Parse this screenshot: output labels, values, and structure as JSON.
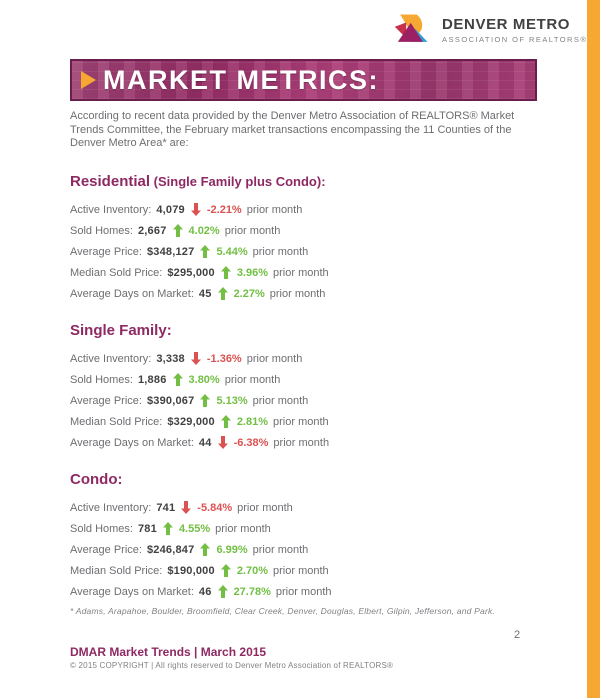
{
  "header": {
    "logo": {
      "title": "DENVER METRO",
      "subtitle": "ASSOCIATION OF REALTORS®"
    },
    "banner": {
      "title": "MARKET METRICS:"
    }
  },
  "intro": "According to recent data provided by the Denver Metro Association of REALTORS® Market Trends Committee, the February market transactions encompassing the 11 Counties of the Denver Metro Area* are:",
  "sections": [
    {
      "title": "Residential",
      "subtitle": " (Single Family plus Condo):",
      "metrics": [
        {
          "label": "Active Inventory:",
          "value": "4,079",
          "direction": "down",
          "pct": "-2.21%",
          "suffix": "prior month"
        },
        {
          "label": "Sold Homes:",
          "value": "2,667",
          "direction": "up",
          "pct": "4.02%",
          "suffix": "prior month"
        },
        {
          "label": "Average Price:",
          "value": "$348,127",
          "direction": "up",
          "pct": "5.44%",
          "suffix": "prior month"
        },
        {
          "label": "Median Sold Price:",
          "value": "$295,000",
          "direction": "up",
          "pct": "3.96%",
          "suffix": "prior month"
        },
        {
          "label": "Average Days on Market:",
          "value": "45",
          "direction": "up",
          "pct": "2.27%",
          "suffix": "prior month"
        }
      ]
    },
    {
      "title": "Single Family:",
      "subtitle": "",
      "metrics": [
        {
          "label": "Active Inventory:",
          "value": "3,338",
          "direction": "down",
          "pct": "-1.36%",
          "suffix": "prior month"
        },
        {
          "label": "Sold Homes:",
          "value": "1,886",
          "direction": "up",
          "pct": "3.80%",
          "suffix": "prior month"
        },
        {
          "label": "Average Price:",
          "value": "$390,067",
          "direction": "up",
          "pct": "5.13%",
          "suffix": "prior month"
        },
        {
          "label": "Median Sold Price:",
          "value": "$329,000",
          "direction": "up",
          "pct": "2.81%",
          "suffix": "prior month"
        },
        {
          "label": "Average Days on Market:",
          "value": "44",
          "direction": "down",
          "pct": "-6.38%",
          "suffix": "prior month"
        }
      ]
    },
    {
      "title": "Condo:",
      "subtitle": "",
      "metrics": [
        {
          "label": "Active Inventory:",
          "value": "741",
          "direction": "down",
          "pct": "-5.84%",
          "suffix": "prior month"
        },
        {
          "label": "Sold Homes:",
          "value": "781",
          "direction": "up",
          "pct": "4.55%",
          "suffix": "prior month"
        },
        {
          "label": "Average Price:",
          "value": "$246,847",
          "direction": "up",
          "pct": "6.99%",
          "suffix": "prior month"
        },
        {
          "label": "Median Sold Price:",
          "value": "$190,000",
          "direction": "up",
          "pct": "2.70%",
          "suffix": "prior month"
        },
        {
          "label": "Average Days on Market:",
          "value": "46",
          "direction": "up",
          "pct": "27.78%",
          "suffix": "prior month"
        }
      ]
    }
  ],
  "footnote": "* Adams, Arapahoe, Boulder, Broomfield, Clear Creek, Denver, Douglas, Elbert, Gilpin, Jefferson, and Park.",
  "page": {
    "number": "2"
  },
  "footer": {
    "bold": "DMAR Market Trends | March 2015",
    "copyright": "© 2015 COPYRIGHT | All rights reserved to Denver Metro Association of REALTORS®"
  },
  "colors": {
    "accent_orange": "#F6A832",
    "magenta": "#8E2963",
    "green": "#72BF44",
    "red": "#DB5252"
  }
}
